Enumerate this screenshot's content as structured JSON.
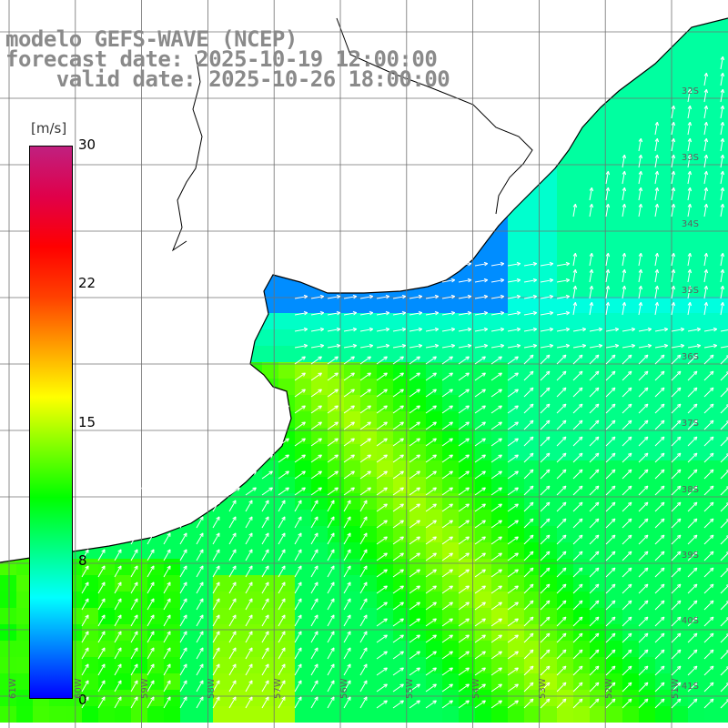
{
  "title": {
    "model": "modelo GEFS-WAVE (NCEP)",
    "forecast": "forecast date: 2025-10-19 12:00:00",
    "valid": "    valid date: 2025-10-26 18:00:00"
  },
  "colorbar": {
    "units": "[m/s]",
    "ticks": [
      "30",
      "22",
      "15",
      "8",
      "0"
    ],
    "tick_values": [
      30,
      22,
      15,
      8,
      0
    ],
    "range": [
      0,
      30
    ],
    "colors": [
      "#0000ff",
      "#0080ff",
      "#00ffff",
      "#00ff80",
      "#00ff00",
      "#80ff00",
      "#ffff00",
      "#ffa000",
      "#ff4000",
      "#ff0000",
      "#e0004a",
      "#c0207f"
    ]
  },
  "lat_labels": [
    "32S",
    "33S",
    "34S",
    "35S",
    "36S",
    "37S",
    "38S",
    "39S",
    "40S",
    "41S"
  ],
  "lon_labels": [
    "61W",
    "60W",
    "59W",
    "58W",
    "57W",
    "56W",
    "55W",
    "54W",
    "53W",
    "52W",
    "51W"
  ],
  "colors": {
    "land": "#ffffff",
    "grid": "#707070",
    "coast": "#000000",
    "arrow": "#ffffff"
  },
  "wind_field_zones": [
    {
      "region": "rio-de-la-plata-estuary",
      "speed_ms": 3
    },
    {
      "region": "uruguay-coast-south",
      "speed_ms": 6
    },
    {
      "region": "brazil-coast-east",
      "speed_ms": 7
    },
    {
      "region": "open-ocean-east",
      "speed_ms": 8
    },
    {
      "region": "coastal-jet-diagonal",
      "speed_ms": 14
    },
    {
      "region": "southwest-shelf",
      "speed_ms": 12
    }
  ]
}
